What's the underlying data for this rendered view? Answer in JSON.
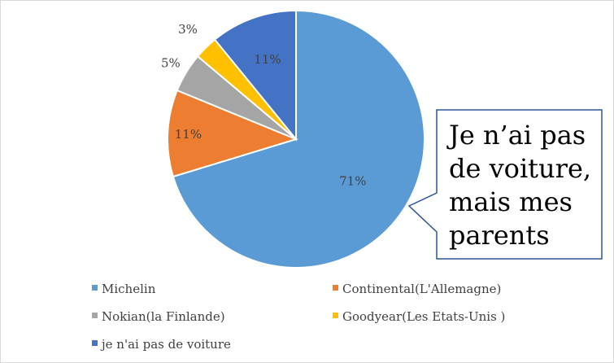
{
  "chart_data": {
    "type": "pie",
    "categories": [
      "Michelin",
      "Continental(L'Allemagne)",
      "Nokian(la Finlande)",
      "Goodyear(Les Etats-Unis )",
      "je n'ai pas de voiture"
    ],
    "values": [
      71,
      11,
      5,
      3,
      11
    ],
    "data_labels": [
      "71%",
      "11%",
      "5%",
      "3%",
      "11%"
    ],
    "colors": [
      "#5B9BD5",
      "#ED7D31",
      "#A5A5A5",
      "#FFC000",
      "#4472C4"
    ],
    "legend_position": "bottom",
    "start_angle": "12 o'clock",
    "direction": "clockwise"
  },
  "callout": {
    "lines": [
      "Je n’ai pas",
      "de voiture,",
      "mais mes",
      "parents"
    ],
    "border_color": "#2F5597"
  }
}
